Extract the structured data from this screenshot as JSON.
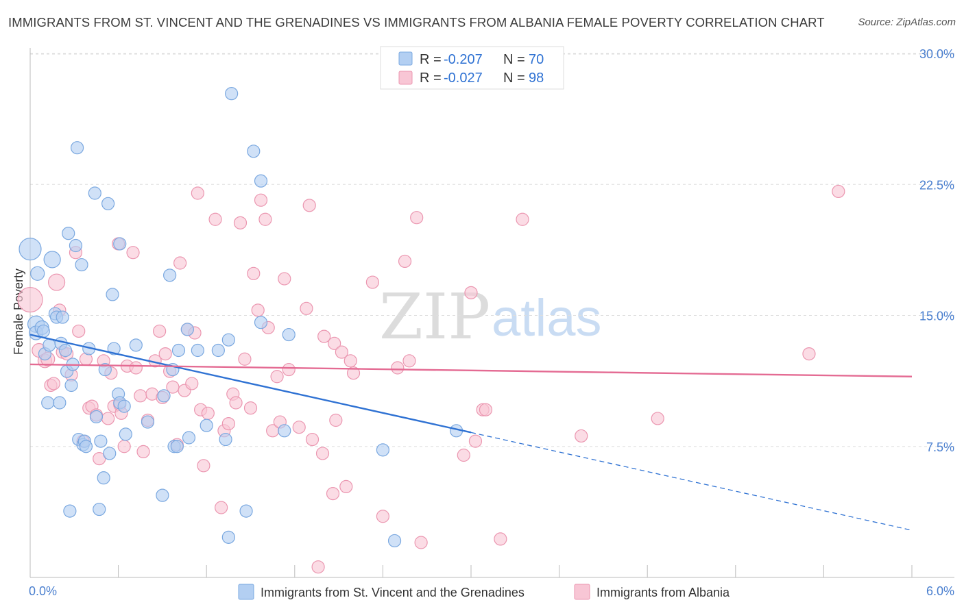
{
  "header": {
    "title": "IMMIGRANTS FROM ST. VINCENT AND THE GRENADINES VS IMMIGRANTS FROM ALBANIA FEMALE POVERTY CORRELATION CHART",
    "source": "Source: ZipAtlas.com"
  },
  "watermark": {
    "zip": "ZIP",
    "atlas": "atlas"
  },
  "stats": [
    {
      "r_label": "R =",
      "r_value": "-0.207",
      "n_label": "N =",
      "n_value": "70"
    },
    {
      "r_label": "R =",
      "r_value": "-0.027",
      "n_label": "N =",
      "n_value": "98"
    }
  ],
  "chart_data": {
    "type": "scatter",
    "title": "IMMIGRANTS FROM ST. VINCENT AND THE GRENADINES VS IMMIGRANTS FROM ALBANIA FEMALE POVERTY CORRELATION CHART",
    "xlabel": "",
    "ylabel": "Female Poverty",
    "xlim": [
      0,
      6
    ],
    "ylim": [
      0,
      31.5
    ],
    "x_tick_labels": [
      "0.0%",
      "6.0%"
    ],
    "y_ticks": [
      7.5,
      15.0,
      22.5,
      30.0
    ],
    "y_tick_labels": [
      "7.5%",
      "15.0%",
      "22.5%",
      "30.0%"
    ],
    "grid": true,
    "legend_position": "bottom",
    "colors": {
      "blue_fill": "#b3cff2",
      "blue_stroke": "#7aa8e0",
      "blue_line": "#2f72d3",
      "pink_fill": "#f8c6d5",
      "pink_stroke": "#eb96b0",
      "pink_line": "#e46b93",
      "axis_text": "#4a7fcf"
    },
    "series": [
      {
        "name": "Immigrants from St. Vincent and the Grenadines",
        "color": "blue",
        "trend": {
          "x0": 0.0,
          "y0": 13.9,
          "x1": 3.0,
          "y1": 8.3,
          "dash_to_x": 6.0,
          "dash_y": 2.7
        },
        "points": [
          [
            0.0,
            18.8,
            16
          ],
          [
            0.04,
            14.5,
            12
          ],
          [
            0.04,
            14.0,
            10
          ],
          [
            0.05,
            17.4,
            10
          ],
          [
            0.08,
            14.3,
            10
          ],
          [
            0.09,
            14.1,
            9
          ],
          [
            0.1,
            12.8,
            9
          ],
          [
            0.12,
            10.0,
            9
          ],
          [
            0.13,
            13.3,
            9
          ],
          [
            0.15,
            18.2,
            12
          ],
          [
            0.17,
            15.1,
            9
          ],
          [
            0.18,
            14.9,
            9
          ],
          [
            0.2,
            10.0,
            9
          ],
          [
            0.21,
            13.4,
            9
          ],
          [
            0.22,
            14.9,
            9
          ],
          [
            0.24,
            13.0,
            9
          ],
          [
            0.25,
            11.8,
            9
          ],
          [
            0.26,
            19.7,
            9
          ],
          [
            0.27,
            3.8,
            9
          ],
          [
            0.28,
            11.0,
            9
          ],
          [
            0.29,
            12.2,
            9
          ],
          [
            0.31,
            19.0,
            9
          ],
          [
            0.32,
            24.6,
            9
          ],
          [
            0.33,
            7.9,
            9
          ],
          [
            0.35,
            17.9,
            9
          ],
          [
            0.36,
            7.6,
            9
          ],
          [
            0.37,
            7.8,
            9
          ],
          [
            0.38,
            7.5,
            9
          ],
          [
            0.4,
            13.1,
            9
          ],
          [
            0.44,
            22.0,
            9
          ],
          [
            0.45,
            9.2,
            9
          ],
          [
            0.47,
            3.9,
            9
          ],
          [
            0.48,
            7.8,
            9
          ],
          [
            0.5,
            5.7,
            9
          ],
          [
            0.51,
            11.9,
            9
          ],
          [
            0.53,
            21.4,
            9
          ],
          [
            0.54,
            7.1,
            9
          ],
          [
            0.56,
            16.2,
            9
          ],
          [
            0.57,
            13.1,
            9
          ],
          [
            0.6,
            10.5,
            9
          ],
          [
            0.61,
            10.0,
            9
          ],
          [
            0.61,
            19.1,
            9
          ],
          [
            0.64,
            9.8,
            9
          ],
          [
            0.65,
            8.2,
            9
          ],
          [
            0.72,
            13.3,
            9
          ],
          [
            0.8,
            8.9,
            9
          ],
          [
            0.9,
            4.7,
            9
          ],
          [
            0.91,
            10.4,
            9
          ],
          [
            0.95,
            17.3,
            9
          ],
          [
            0.97,
            11.9,
            9
          ],
          [
            0.98,
            7.5,
            9
          ],
          [
            1.0,
            7.5,
            9
          ],
          [
            1.01,
            13.0,
            9
          ],
          [
            1.07,
            14.2,
            9
          ],
          [
            1.08,
            8.0,
            9
          ],
          [
            1.14,
            13.0,
            9
          ],
          [
            1.2,
            8.7,
            9
          ],
          [
            1.28,
            13.0,
            9
          ],
          [
            1.33,
            7.9,
            9
          ],
          [
            1.35,
            13.6,
            9
          ],
          [
            1.35,
            2.3,
            9
          ],
          [
            1.37,
            27.7,
            9
          ],
          [
            1.47,
            3.8,
            9
          ],
          [
            1.52,
            24.4,
            9
          ],
          [
            1.57,
            22.7,
            9
          ],
          [
            1.57,
            14.6,
            9
          ],
          [
            1.73,
            8.4,
            9
          ],
          [
            1.76,
            13.9,
            9
          ],
          [
            2.4,
            7.3,
            9
          ],
          [
            2.48,
            2.1,
            9
          ],
          [
            2.9,
            8.4,
            9
          ]
        ]
      },
      {
        "name": "Immigrants from Albania",
        "color": "pink",
        "trend": {
          "x0": 0.0,
          "y0": 12.2,
          "x1": 6.0,
          "y1": 11.5
        },
        "points": [
          [
            0.0,
            15.9,
            18
          ],
          [
            0.06,
            13.0,
            10
          ],
          [
            0.1,
            12.4,
            10
          ],
          [
            0.12,
            12.5,
            10
          ],
          [
            0.14,
            11.0,
            9
          ],
          [
            0.16,
            11.1,
            9
          ],
          [
            0.18,
            16.9,
            12
          ],
          [
            0.2,
            15.3,
            9
          ],
          [
            0.22,
            12.9,
            9
          ],
          [
            0.25,
            12.8,
            9
          ],
          [
            0.28,
            11.6,
            9
          ],
          [
            0.31,
            18.6,
            9
          ],
          [
            0.33,
            14.1,
            9
          ],
          [
            0.36,
            7.8,
            9
          ],
          [
            0.38,
            12.5,
            9
          ],
          [
            0.4,
            9.7,
            9
          ],
          [
            0.42,
            9.8,
            9
          ],
          [
            0.45,
            9.3,
            9
          ],
          [
            0.47,
            6.8,
            9
          ],
          [
            0.5,
            12.4,
            9
          ],
          [
            0.53,
            9.1,
            9
          ],
          [
            0.55,
            11.7,
            9
          ],
          [
            0.57,
            9.8,
            9
          ],
          [
            0.6,
            19.1,
            9
          ],
          [
            0.61,
            9.9,
            9
          ],
          [
            0.62,
            9.4,
            9
          ],
          [
            0.64,
            7.5,
            9
          ],
          [
            0.66,
            12.1,
            9
          ],
          [
            0.7,
            18.6,
            9
          ],
          [
            0.72,
            12.0,
            9
          ],
          [
            0.75,
            10.4,
            9
          ],
          [
            0.77,
            7.2,
            9
          ],
          [
            0.8,
            9.0,
            9
          ],
          [
            0.83,
            10.5,
            9
          ],
          [
            0.85,
            12.4,
            9
          ],
          [
            0.88,
            14.1,
            9
          ],
          [
            0.9,
            10.3,
            9
          ],
          [
            0.92,
            12.8,
            9
          ],
          [
            0.95,
            11.8,
            9
          ],
          [
            0.97,
            10.9,
            9
          ],
          [
            1.0,
            7.6,
            9
          ],
          [
            1.02,
            18.0,
            9
          ],
          [
            1.05,
            10.7,
            9
          ],
          [
            1.07,
            14.2,
            9
          ],
          [
            1.1,
            11.1,
            9
          ],
          [
            1.12,
            14.0,
            9
          ],
          [
            1.14,
            22.0,
            9
          ],
          [
            1.16,
            9.6,
            9
          ],
          [
            1.18,
            6.4,
            9
          ],
          [
            1.21,
            9.4,
            9
          ],
          [
            1.26,
            20.5,
            9
          ],
          [
            1.3,
            4.0,
            9
          ],
          [
            1.32,
            8.4,
            9
          ],
          [
            1.35,
            8.8,
            9
          ],
          [
            1.38,
            10.5,
            9
          ],
          [
            1.4,
            10.0,
            9
          ],
          [
            1.43,
            20.3,
            9
          ],
          [
            1.46,
            12.5,
            9
          ],
          [
            1.5,
            9.7,
            9
          ],
          [
            1.52,
            17.4,
            9
          ],
          [
            1.55,
            15.3,
            9
          ],
          [
            1.57,
            21.6,
            9
          ],
          [
            1.6,
            20.5,
            9
          ],
          [
            1.62,
            14.3,
            9
          ],
          [
            1.65,
            8.4,
            9
          ],
          [
            1.68,
            11.5,
            9
          ],
          [
            1.7,
            8.9,
            9
          ],
          [
            1.73,
            17.1,
            9
          ],
          [
            1.76,
            11.9,
            9
          ],
          [
            1.83,
            8.6,
            9
          ],
          [
            1.88,
            15.4,
            9
          ],
          [
            1.9,
            21.3,
            9
          ],
          [
            1.92,
            7.9,
            9
          ],
          [
            1.96,
            0.6,
            9
          ],
          [
            1.99,
            7.1,
            9
          ],
          [
            2.0,
            13.8,
            9
          ],
          [
            2.06,
            4.8,
            9
          ],
          [
            2.07,
            13.4,
            9
          ],
          [
            2.08,
            9.0,
            9
          ],
          [
            2.12,
            12.9,
            9
          ],
          [
            2.15,
            5.2,
            9
          ],
          [
            2.18,
            12.4,
            9
          ],
          [
            2.2,
            11.7,
            9
          ],
          [
            2.33,
            16.9,
            9
          ],
          [
            2.4,
            3.5,
            9
          ],
          [
            2.5,
            12.0,
            9
          ],
          [
            2.55,
            18.1,
            9
          ],
          [
            2.58,
            12.4,
            9
          ],
          [
            2.63,
            20.6,
            9
          ],
          [
            2.66,
            2.0,
            9
          ],
          [
            2.95,
            7.0,
            9
          ],
          [
            3.0,
            16.3,
            9
          ],
          [
            3.03,
            7.8,
            9
          ],
          [
            3.08,
            9.6,
            9
          ],
          [
            3.1,
            9.6,
            9
          ],
          [
            3.2,
            2.2,
            9
          ],
          [
            3.35,
            20.5,
            9
          ],
          [
            3.75,
            8.1,
            9
          ],
          [
            4.27,
            9.1,
            9
          ],
          [
            5.3,
            12.8,
            9
          ],
          [
            5.5,
            22.1,
            9
          ]
        ]
      }
    ]
  }
}
